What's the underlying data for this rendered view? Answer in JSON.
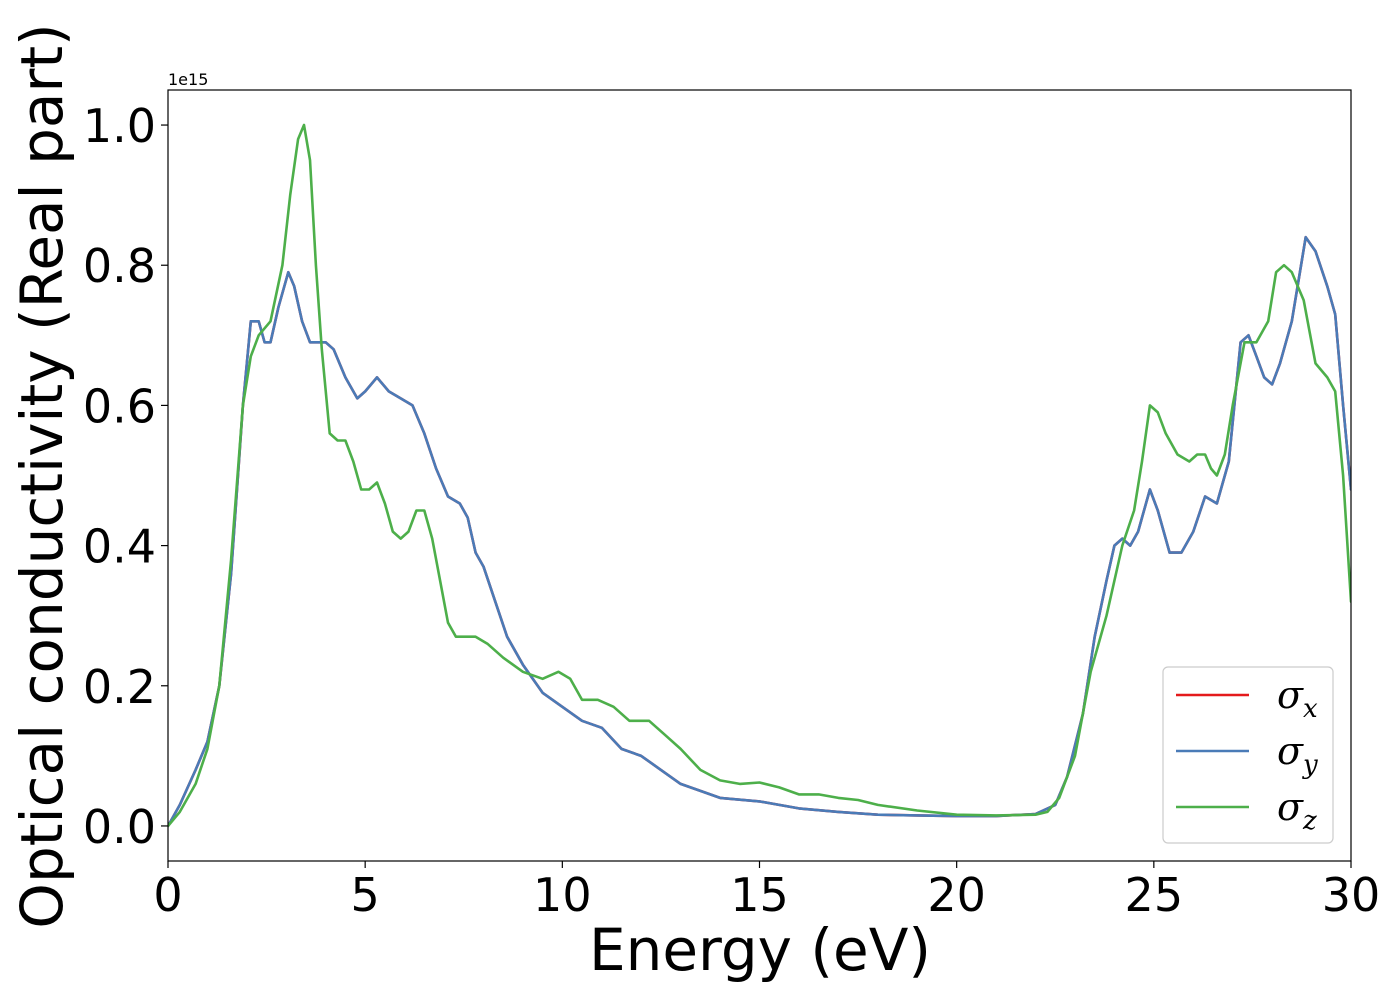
{
  "chart_data": {
    "type": "line",
    "title": "",
    "xlabel": "Energy (eV)",
    "ylabel": "Optical conductivity (Real part)",
    "y_offset_label": "1e15",
    "xlim": [
      0,
      30
    ],
    "ylim": [
      -0.05,
      1.05
    ],
    "x_ticks": [
      0,
      5,
      10,
      15,
      20,
      25,
      30
    ],
    "x_tick_labels": [
      "0",
      "5",
      "10",
      "15",
      "20",
      "25",
      "30"
    ],
    "y_ticks": [
      0.0,
      0.2,
      0.4,
      0.6,
      0.8,
      1.0
    ],
    "y_tick_labels": [
      "0.0",
      "0.2",
      "0.4",
      "0.6",
      "0.8",
      "1.0"
    ],
    "grid": false,
    "legend_position": "lower-right",
    "series": [
      {
        "name": "σx",
        "legend_base": "σ",
        "legend_sub": "x",
        "color": "#e41a1c",
        "x": [
          0,
          0.3,
          0.7,
          1.0,
          1.3,
          1.6,
          1.9,
          2.1,
          2.3,
          2.45,
          2.6,
          2.8,
          3.05,
          3.2,
          3.4,
          3.6,
          3.8,
          4.0,
          4.2,
          4.5,
          4.8,
          5.0,
          5.3,
          5.6,
          5.9,
          6.2,
          6.5,
          6.8,
          7.1,
          7.4,
          7.6,
          7.8,
          8.0,
          8.3,
          8.6,
          9.0,
          9.5,
          10.0,
          10.5,
          11.0,
          11.5,
          12.0,
          12.5,
          13.0,
          13.5,
          14.0,
          15.0,
          16.0,
          17.0,
          18.0,
          19.0,
          20.0,
          21.0,
          22.0,
          22.5,
          22.8,
          23.2,
          23.5,
          23.8,
          24.0,
          24.2,
          24.4,
          24.6,
          24.9,
          25.1,
          25.4,
          25.7,
          26.0,
          26.3,
          26.6,
          26.9,
          27.2,
          27.4,
          27.6,
          27.8,
          28.0,
          28.2,
          28.5,
          28.85,
          29.1,
          29.4,
          29.6,
          29.8,
          30.0
        ],
        "values": [
          0.0,
          0.03,
          0.08,
          0.12,
          0.2,
          0.36,
          0.6,
          0.72,
          0.72,
          0.69,
          0.69,
          0.74,
          0.79,
          0.77,
          0.72,
          0.69,
          0.69,
          0.69,
          0.68,
          0.64,
          0.61,
          0.62,
          0.64,
          0.62,
          0.61,
          0.6,
          0.56,
          0.51,
          0.47,
          0.46,
          0.44,
          0.39,
          0.37,
          0.32,
          0.27,
          0.23,
          0.19,
          0.17,
          0.15,
          0.14,
          0.11,
          0.1,
          0.08,
          0.06,
          0.05,
          0.04,
          0.035,
          0.025,
          0.02,
          0.016,
          0.015,
          0.014,
          0.014,
          0.017,
          0.03,
          0.07,
          0.16,
          0.27,
          0.35,
          0.4,
          0.41,
          0.4,
          0.42,
          0.48,
          0.45,
          0.39,
          0.39,
          0.42,
          0.47,
          0.46,
          0.52,
          0.69,
          0.7,
          0.67,
          0.64,
          0.63,
          0.66,
          0.72,
          0.84,
          0.82,
          0.77,
          0.73,
          0.6,
          0.48
        ]
      },
      {
        "name": "σy",
        "legend_base": "σ",
        "legend_sub": "y",
        "color": "#4a7bb7",
        "x": [
          0,
          0.3,
          0.7,
          1.0,
          1.3,
          1.6,
          1.9,
          2.1,
          2.3,
          2.45,
          2.6,
          2.8,
          3.05,
          3.2,
          3.4,
          3.6,
          3.8,
          4.0,
          4.2,
          4.5,
          4.8,
          5.0,
          5.3,
          5.6,
          5.9,
          6.2,
          6.5,
          6.8,
          7.1,
          7.4,
          7.6,
          7.8,
          8.0,
          8.3,
          8.6,
          9.0,
          9.5,
          10.0,
          10.5,
          11.0,
          11.5,
          12.0,
          12.5,
          13.0,
          13.5,
          14.0,
          15.0,
          16.0,
          17.0,
          18.0,
          19.0,
          20.0,
          21.0,
          22.0,
          22.5,
          22.8,
          23.2,
          23.5,
          23.8,
          24.0,
          24.2,
          24.4,
          24.6,
          24.9,
          25.1,
          25.4,
          25.7,
          26.0,
          26.3,
          26.6,
          26.9,
          27.2,
          27.4,
          27.6,
          27.8,
          28.0,
          28.2,
          28.5,
          28.85,
          29.1,
          29.4,
          29.6,
          29.8,
          30.0
        ],
        "values": [
          0.0,
          0.03,
          0.08,
          0.12,
          0.2,
          0.36,
          0.6,
          0.72,
          0.72,
          0.69,
          0.69,
          0.74,
          0.79,
          0.77,
          0.72,
          0.69,
          0.69,
          0.69,
          0.68,
          0.64,
          0.61,
          0.62,
          0.64,
          0.62,
          0.61,
          0.6,
          0.56,
          0.51,
          0.47,
          0.46,
          0.44,
          0.39,
          0.37,
          0.32,
          0.27,
          0.23,
          0.19,
          0.17,
          0.15,
          0.14,
          0.11,
          0.1,
          0.08,
          0.06,
          0.05,
          0.04,
          0.035,
          0.025,
          0.02,
          0.016,
          0.015,
          0.014,
          0.014,
          0.017,
          0.03,
          0.07,
          0.16,
          0.27,
          0.35,
          0.4,
          0.41,
          0.4,
          0.42,
          0.48,
          0.45,
          0.39,
          0.39,
          0.42,
          0.47,
          0.46,
          0.52,
          0.69,
          0.7,
          0.67,
          0.64,
          0.63,
          0.66,
          0.72,
          0.84,
          0.82,
          0.77,
          0.73,
          0.6,
          0.48
        ]
      },
      {
        "name": "σz",
        "legend_base": "σ",
        "legend_sub": "z",
        "color": "#4daf4a",
        "x": [
          0,
          0.3,
          0.7,
          1.0,
          1.3,
          1.6,
          1.9,
          2.1,
          2.3,
          2.6,
          2.9,
          3.1,
          3.3,
          3.45,
          3.6,
          3.75,
          3.9,
          4.1,
          4.3,
          4.5,
          4.7,
          4.9,
          5.1,
          5.3,
          5.5,
          5.7,
          5.9,
          6.1,
          6.3,
          6.5,
          6.7,
          6.9,
          7.1,
          7.3,
          7.5,
          7.8,
          8.1,
          8.5,
          9.0,
          9.5,
          9.9,
          10.2,
          10.5,
          10.9,
          11.3,
          11.7,
          12.2,
          12.6,
          13.0,
          13.5,
          14.0,
          14.5,
          15.0,
          15.5,
          16.0,
          16.5,
          17.0,
          17.5,
          18.0,
          19.0,
          20.0,
          21.0,
          22.0,
          22.3,
          22.6,
          23.0,
          23.4,
          23.8,
          24.2,
          24.5,
          24.7,
          24.9,
          25.1,
          25.3,
          25.6,
          25.9,
          26.1,
          26.3,
          26.45,
          26.6,
          26.8,
          27.0,
          27.3,
          27.6,
          27.9,
          28.1,
          28.3,
          28.5,
          28.8,
          29.1,
          29.4,
          29.6,
          29.8,
          30.0
        ],
        "values": [
          0.0,
          0.02,
          0.06,
          0.11,
          0.2,
          0.38,
          0.6,
          0.67,
          0.7,
          0.72,
          0.8,
          0.9,
          0.98,
          1.0,
          0.95,
          0.8,
          0.68,
          0.56,
          0.55,
          0.55,
          0.52,
          0.48,
          0.48,
          0.49,
          0.46,
          0.42,
          0.41,
          0.42,
          0.45,
          0.45,
          0.41,
          0.35,
          0.29,
          0.27,
          0.27,
          0.27,
          0.26,
          0.24,
          0.22,
          0.21,
          0.22,
          0.21,
          0.18,
          0.18,
          0.17,
          0.15,
          0.15,
          0.13,
          0.11,
          0.08,
          0.065,
          0.06,
          0.062,
          0.055,
          0.045,
          0.045,
          0.04,
          0.037,
          0.03,
          0.022,
          0.016,
          0.015,
          0.016,
          0.02,
          0.04,
          0.1,
          0.22,
          0.3,
          0.4,
          0.45,
          0.52,
          0.6,
          0.59,
          0.56,
          0.53,
          0.52,
          0.53,
          0.53,
          0.51,
          0.5,
          0.53,
          0.6,
          0.69,
          0.69,
          0.72,
          0.79,
          0.8,
          0.79,
          0.75,
          0.66,
          0.64,
          0.62,
          0.5,
          0.32
        ]
      }
    ]
  }
}
